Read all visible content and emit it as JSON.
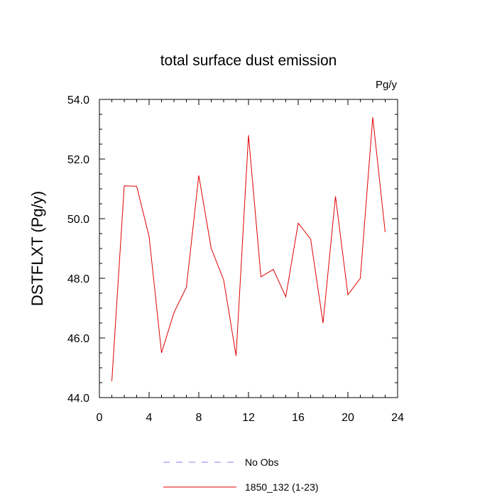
{
  "chart_data": {
    "type": "line",
    "title": "total surface dust emission",
    "units_label": "Pg/y",
    "ylabel": "DSTFLXT  (Pg/y)",
    "xlabel": "",
    "xlim": [
      0,
      24
    ],
    "ylim": [
      44.0,
      54.0
    ],
    "x_ticks": [
      0,
      4,
      8,
      12,
      16,
      20,
      24
    ],
    "x_tick_labels": [
      "0",
      "4",
      "8",
      "12",
      "16",
      "20",
      "24"
    ],
    "y_ticks": [
      44,
      46,
      48,
      50,
      52,
      54
    ],
    "y_tick_labels": [
      "44.0",
      "46.0",
      "48.0",
      "50.0",
      "52.0",
      "54.0"
    ],
    "grid": false,
    "legend_position": "bottom",
    "series": [
      {
        "name": "1850_132 (1-23)",
        "color": "#e00000",
        "style": "solid",
        "x": [
          1,
          2,
          3,
          4,
          5,
          6,
          7,
          8,
          9,
          10,
          11,
          12,
          13,
          14,
          15,
          16,
          17,
          18,
          19,
          20,
          21,
          22,
          23
        ],
        "y": [
          44.55,
          51.1,
          51.09,
          49.4,
          45.5,
          46.85,
          47.7,
          51.45,
          49.0,
          47.95,
          45.4,
          52.8,
          48.05,
          48.3,
          47.38,
          49.85,
          49.32,
          46.5,
          50.75,
          47.45,
          48.0,
          53.4,
          49.55
        ]
      }
    ],
    "legend": [
      {
        "label": "No Obs",
        "color": "#8080ff",
        "style": "dashed"
      },
      {
        "label": "1850_132 (1-23)",
        "color": "#e00000",
        "style": "solid"
      }
    ]
  }
}
